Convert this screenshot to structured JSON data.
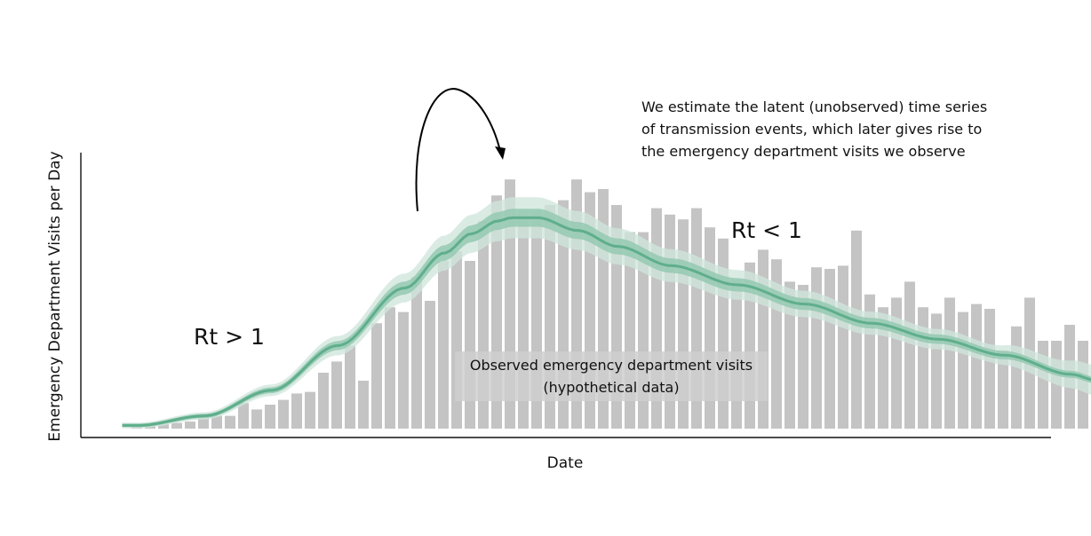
{
  "chart_data": {
    "type": "bar",
    "xlabel": "Date",
    "ylabel": "Emergency Department Visits per Day",
    "grid": false,
    "legend": "none",
    "values": [
      0.8,
      1.2,
      1.5,
      1.8,
      2.2,
      3.5,
      4.0,
      4.0,
      8.0,
      6.0,
      7.5,
      9.0,
      11.0,
      11.5,
      17.5,
      21.0,
      26.0,
      15.0,
      33.0,
      38.0,
      36.5,
      47.5,
      40.0,
      52.5,
      55.5,
      52.5,
      65.0,
      73.0,
      78.0,
      68.0,
      68.0,
      70.0,
      71.5,
      78.0,
      74.0,
      75.0,
      70.0,
      61.5,
      61.5,
      69.0,
      67.0,
      65.5,
      69.0,
      63.0,
      59.5,
      46.5,
      52.0,
      56.0,
      53.0,
      46.0,
      45.0,
      50.5,
      50.0,
      51.0,
      62.0,
      42.0,
      38.0,
      41.0,
      46.0,
      38.0,
      36.0,
      41.0,
      36.5,
      39.0,
      37.5,
      24.5,
      32.0,
      41.0,
      27.5,
      27.5,
      32.5,
      27.5,
      29.5
    ],
    "curve_median_knots": [
      [
        0,
        1
      ],
      [
        5,
        4
      ],
      [
        10,
        12
      ],
      [
        15,
        26
      ],
      [
        20,
        44
      ],
      [
        23,
        55
      ],
      [
        25,
        61
      ],
      [
        27,
        65
      ],
      [
        28,
        66
      ],
      [
        30,
        66
      ],
      [
        33,
        62
      ],
      [
        36,
        57
      ],
      [
        40,
        51
      ],
      [
        45,
        45
      ],
      [
        50,
        39
      ],
      [
        55,
        33
      ],
      [
        60,
        28
      ],
      [
        65,
        23
      ],
      [
        70,
        17
      ],
      [
        72,
        15
      ]
    ],
    "annotations": {
      "rt_gt_1": "Rt > 1",
      "rt_lt_1": "Rt < 1",
      "latent_line1": "We estimate the latent (unobserved) time series",
      "latent_line2": "of transmission events, which later gives rise to",
      "latent_line3": "the emergency department visits we observe",
      "observed_line1": "Observed emergency department visits",
      "observed_line2": "(hypothetical data)"
    },
    "colors": {
      "bars": "#c4c4c4",
      "band_outer": "#cfe6dc",
      "band_inner": "#94c9b1",
      "median": "#5fae8c",
      "axis": "#111111",
      "arrow": "#000000"
    }
  }
}
